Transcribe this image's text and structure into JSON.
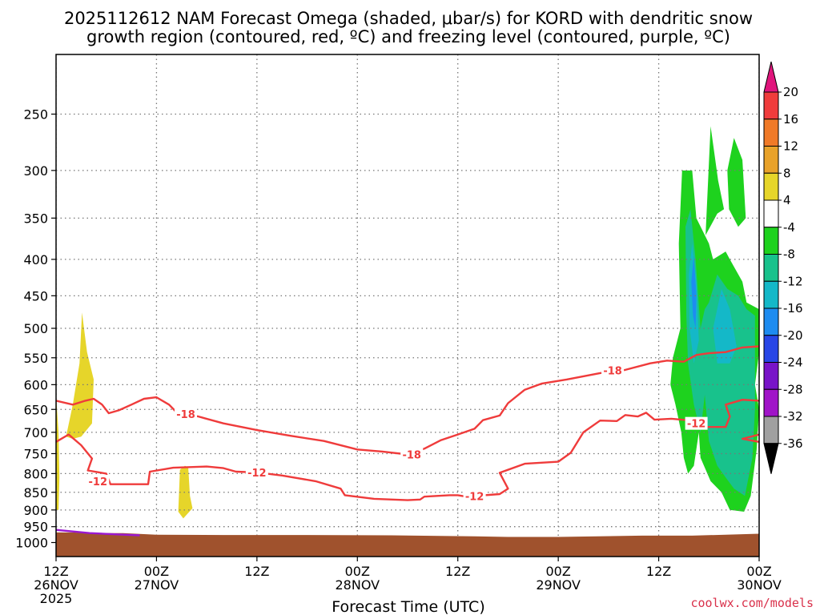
{
  "chart_data": {
    "type": "contour",
    "title_line1": "2025112612 NAM Forecast Omega (shaded, μbar/s) for KORD with dendritic snow",
    "title_line2": "growth region (contoured, red, ºC) and freezing level (contoured, purple, ºC)",
    "xlabel": "Forecast Time (UTC)",
    "ylabel": "",
    "credit": "coolwx.com/models",
    "x_range_hours": [
      0,
      84
    ],
    "x_ticks": [
      {
        "hour": 0,
        "line1": "12Z",
        "line2": "26NOV",
        "line3": "2025"
      },
      {
        "hour": 12,
        "line1": "00Z",
        "line2": "27NOV",
        "line3": ""
      },
      {
        "hour": 24,
        "line1": "12Z",
        "line2": "",
        "line3": ""
      },
      {
        "hour": 36,
        "line1": "00Z",
        "line2": "28NOV",
        "line3": ""
      },
      {
        "hour": 48,
        "line1": "12Z",
        "line2": "",
        "line3": ""
      },
      {
        "hour": 60,
        "line1": "00Z",
        "line2": "29NOV",
        "line3": ""
      },
      {
        "hour": 72,
        "line1": "12Z",
        "line2": "",
        "line3": ""
      },
      {
        "hour": 84,
        "line1": "00Z",
        "line2": "30NOV",
        "line3": ""
      }
    ],
    "y_axis": {
      "scale": "log-pressure",
      "top_hpa": 200,
      "bottom_hpa": 1040
    },
    "y_ticks": [
      "250",
      "300",
      "350",
      "400",
      "450",
      "500",
      "550",
      "600",
      "650",
      "700",
      "750",
      "800",
      "850",
      "900",
      "950",
      "1000"
    ],
    "grid": true,
    "colorbar": {
      "ticks": [
        "20",
        "16",
        "12",
        "8",
        "4",
        "-4",
        "-8",
        "-12",
        "-16",
        "-20",
        "-24",
        "-28",
        "-32",
        "-36"
      ],
      "colors": {
        "gt20": "#e0157c",
        "16_20": "#f03c3c",
        "12_16": "#f07a28",
        "8_12": "#e8a22a",
        "4_8": "#e6d52a",
        "m4_4": "#ffffff",
        "m8_m4": "#1ed21e",
        "m12_m8": "#18c28c",
        "m16_m12": "#14b8c8",
        "m20_m16": "#1e8cf0",
        "m24_m20": "#2846e6",
        "m28_m24": "#7814c8",
        "m32_m28": "#a014c8",
        "m36_m32": "#a0a0a0",
        "lt_m36": "#000000"
      }
    },
    "dendritic_contours": [
      {
        "label": "-18",
        "label_positions": [
          {
            "hour": 15.5,
            "hpa": 660
          },
          {
            "hour": 42.5,
            "hpa": 752
          },
          {
            "hour": 66.5,
            "hpa": 573
          }
        ],
        "points": [
          [
            0,
            632
          ],
          [
            2,
            640
          ],
          [
            3.5,
            632
          ],
          [
            4.5,
            628
          ],
          [
            5.5,
            640
          ],
          [
            6.3,
            658
          ],
          [
            7.5,
            652
          ],
          [
            9,
            640
          ],
          [
            10.5,
            628
          ],
          [
            12,
            625
          ],
          [
            13.5,
            640
          ],
          [
            14.5,
            658
          ],
          [
            17,
            665
          ],
          [
            20,
            680
          ],
          [
            24,
            695
          ],
          [
            28,
            708
          ],
          [
            32,
            720
          ],
          [
            36,
            740
          ],
          [
            39,
            745
          ],
          [
            42,
            752
          ],
          [
            44,
            738
          ],
          [
            46,
            718
          ],
          [
            48,
            705
          ],
          [
            50,
            692
          ],
          [
            51,
            673
          ],
          [
            53,
            663
          ],
          [
            54,
            637
          ],
          [
            56,
            610
          ],
          [
            58,
            598
          ],
          [
            61,
            590
          ],
          [
            65,
            578
          ],
          [
            68,
            572
          ],
          [
            71,
            560
          ],
          [
            73,
            555
          ],
          [
            75,
            557
          ],
          [
            76.5,
            545
          ],
          [
            78,
            542
          ],
          [
            80,
            540
          ],
          [
            82,
            532
          ],
          [
            84,
            530
          ]
        ]
      },
      {
        "label": "-12",
        "label_positions": [
          {
            "hour": 5,
            "hpa": 820
          },
          {
            "hour": 24,
            "hpa": 797
          },
          {
            "hour": 50,
            "hpa": 860
          },
          {
            "hour": 76.5,
            "hpa": 680
          }
        ],
        "points": [
          [
            0,
            722
          ],
          [
            1.5,
            705
          ],
          [
            3,
            730
          ],
          [
            4.3,
            762
          ],
          [
            3.8,
            792
          ],
          [
            6,
            800
          ],
          [
            6.5,
            828
          ],
          [
            11,
            828
          ],
          [
            11.2,
            795
          ],
          [
            14,
            785
          ],
          [
            18,
            782
          ],
          [
            20,
            786
          ],
          [
            21.5,
            795
          ],
          [
            24,
            797
          ],
          [
            27,
            805
          ],
          [
            31,
            820
          ],
          [
            34,
            840
          ],
          [
            34.5,
            858
          ],
          [
            38,
            868
          ],
          [
            42,
            872
          ],
          [
            43.5,
            870
          ],
          [
            44,
            862
          ],
          [
            47,
            858
          ],
          [
            48,
            858
          ],
          [
            49,
            862
          ],
          [
            53,
            855
          ],
          [
            54,
            840
          ],
          [
            53,
            798
          ],
          [
            56,
            775
          ],
          [
            60,
            770
          ],
          [
            61.5,
            748
          ],
          [
            63,
            700
          ],
          [
            65,
            674
          ],
          [
            67,
            675
          ],
          [
            68,
            662
          ],
          [
            69.5,
            665
          ],
          [
            70.5,
            657
          ],
          [
            71.5,
            672
          ],
          [
            73.5,
            670
          ],
          [
            76,
            674
          ],
          [
            77.5,
            688
          ],
          [
            80,
            688
          ],
          [
            80.5,
            665
          ],
          [
            80,
            640
          ],
          [
            82,
            630
          ],
          [
            84,
            632
          ]
        ]
      },
      {
        "label": "",
        "label_positions": [],
        "points": [
          [
            84,
            705
          ],
          [
            82,
            715
          ],
          [
            84,
            722
          ]
        ]
      }
    ],
    "freezing_level": {
      "label": "0",
      "points": [
        [
          0,
          960
        ],
        [
          4,
          970
        ],
        [
          8,
          975
        ],
        [
          10,
          977
        ]
      ]
    },
    "omega_regions": [
      {
        "level": "4_8",
        "note": "weak sinking",
        "points": [
          [
            1.2,
            710
          ],
          [
            2,
            640
          ],
          [
            2.8,
            560
          ],
          [
            3.1,
            475
          ],
          [
            3.7,
            540
          ],
          [
            4.5,
            590
          ],
          [
            4.3,
            680
          ],
          [
            3,
            710
          ],
          [
            2,
            715
          ]
        ]
      },
      {
        "level": "4_8",
        "points": [
          [
            14.8,
            790
          ],
          [
            15.4,
            780
          ],
          [
            15.8,
            785
          ],
          [
            16,
            860
          ],
          [
            16.3,
            895
          ],
          [
            15.2,
            925
          ],
          [
            14.6,
            905
          ],
          [
            14.7,
            850
          ]
        ]
      },
      {
        "level": "4_8",
        "points": [
          [
            0,
            620
          ],
          [
            0.3,
            700
          ],
          [
            0.4,
            810
          ],
          [
            0.3,
            900
          ],
          [
            0,
            900
          ]
        ]
      },
      {
        "level": "m8_m4",
        "note": "upward motion area",
        "points": [
          [
            74.8,
            300
          ],
          [
            76,
            300
          ],
          [
            76.5,
            350
          ],
          [
            78,
            380
          ],
          [
            78.5,
            400
          ],
          [
            80,
            390
          ],
          [
            80.5,
            400
          ],
          [
            82,
            430
          ],
          [
            82.5,
            460
          ],
          [
            84,
            470
          ],
          [
            84,
            540
          ],
          [
            83.5,
            600
          ],
          [
            84,
            650
          ],
          [
            83.7,
            740
          ],
          [
            83,
            860
          ],
          [
            82.2,
            905
          ],
          [
            80.5,
            900
          ],
          [
            79.5,
            850
          ],
          [
            78.2,
            820
          ],
          [
            77,
            760
          ],
          [
            76.8,
            700
          ],
          [
            76.2,
            780
          ],
          [
            75.5,
            800
          ],
          [
            75,
            760
          ],
          [
            74.7,
            700
          ],
          [
            74,
            640
          ],
          [
            73.4,
            600
          ],
          [
            73.7,
            550
          ],
          [
            74.6,
            500
          ],
          [
            74.4,
            380
          ]
        ]
      },
      {
        "level": "m8_m4",
        "points": [
          [
            77.6,
            370
          ],
          [
            78.2,
            260
          ],
          [
            79.1,
            310
          ],
          [
            79.8,
            340
          ],
          [
            79,
            345
          ]
        ]
      },
      {
        "level": "m8_m4",
        "points": [
          [
            80.2,
            300
          ],
          [
            81,
            270
          ],
          [
            82,
            290
          ],
          [
            82.4,
            350
          ],
          [
            81.5,
            360
          ],
          [
            80.4,
            340
          ]
        ]
      },
      {
        "level": "m12_m8",
        "points": [
          [
            75.2,
            360
          ],
          [
            75.8,
            340
          ],
          [
            76.4,
            400
          ],
          [
            77,
            500
          ],
          [
            77.5,
            470
          ],
          [
            78,
            460
          ],
          [
            79,
            420
          ],
          [
            80.2,
            440
          ],
          [
            81.5,
            450
          ],
          [
            82.5,
            470
          ],
          [
            83.5,
            480
          ],
          [
            83.5,
            650
          ],
          [
            83.2,
            760
          ],
          [
            82.3,
            860
          ],
          [
            81,
            840
          ],
          [
            80,
            810
          ],
          [
            79,
            780
          ],
          [
            78,
            720
          ],
          [
            77.5,
            620
          ],
          [
            77,
            700
          ],
          [
            76.2,
            640
          ],
          [
            75.5,
            560
          ],
          [
            75.3,
            480
          ]
        ]
      },
      {
        "level": "m16_m12",
        "points": [
          [
            75.6,
            420
          ],
          [
            76,
            380
          ],
          [
            76.5,
            430
          ],
          [
            76.8,
            520
          ],
          [
            76.2,
            560
          ],
          [
            75.7,
            500
          ]
        ]
      },
      {
        "level": "m16_m12",
        "points": [
          [
            78.5,
            500
          ],
          [
            79.5,
            440
          ],
          [
            80.5,
            470
          ],
          [
            81.3,
            530
          ],
          [
            80.5,
            560
          ],
          [
            79,
            560
          ]
        ]
      },
      {
        "level": "m20_m16",
        "points": [
          [
            75.9,
            430
          ],
          [
            76.2,
            395
          ],
          [
            76.5,
            450
          ],
          [
            76.4,
            500
          ],
          [
            76.1,
            480
          ]
        ]
      }
    ],
    "terrain_color": "#a0522d"
  }
}
